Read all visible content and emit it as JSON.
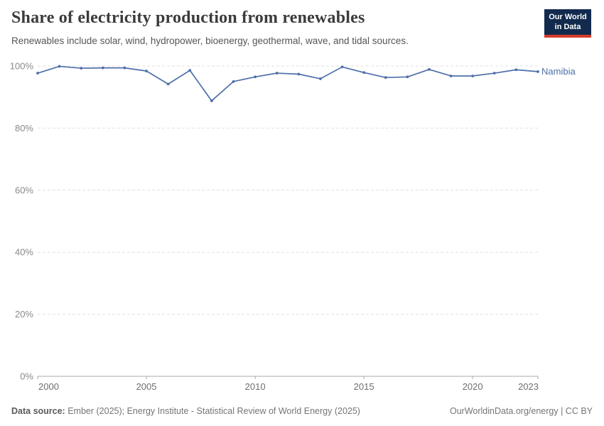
{
  "header": {
    "title": "Share of electricity production from renewables",
    "subtitle": "Renewables include solar, wind, hydropower, bioenergy, geothermal, wave, and tidal sources.",
    "logo": {
      "line1": "Our World",
      "line2": "in Data"
    }
  },
  "footer": {
    "datasource_label": "Data source:",
    "datasource_value": " Ember (2025); Energy Institute - Statistical Review of World Energy (2025)",
    "link": "OurWorldinData.org/energy | CC BY"
  },
  "colors": {
    "series_blue": "#4d6fa9",
    "logo_bg": "#122a4e",
    "logo_accent": "#d93a2b",
    "gridline": "#e0e0e0",
    "axis": "#a9a9a9"
  },
  "chart_data": {
    "type": "line",
    "title": "Share of electricity production from renewables",
    "entity_label": "Namibia",
    "xlabel": "",
    "ylabel": "",
    "xlim": [
      2000,
      2023
    ],
    "ylim": [
      0,
      100
    ],
    "x_ticks": [
      2000,
      2005,
      2010,
      2015,
      2020,
      2023
    ],
    "y_ticks": [
      0,
      20,
      40,
      60,
      80,
      100
    ],
    "y_suffix": "%",
    "grid": "horizontal-dashed",
    "legend_position": "line-end-label",
    "series": [
      {
        "name": "Namibia",
        "color": "#4d6fa9",
        "x": [
          2000,
          2001,
          2002,
          2003,
          2004,
          2005,
          2006,
          2007,
          2008,
          2009,
          2010,
          2011,
          2012,
          2013,
          2014,
          2015,
          2016,
          2017,
          2018,
          2019,
          2020,
          2021,
          2022,
          2023
        ],
        "values": [
          97.7,
          99.9,
          99.3,
          99.4,
          99.4,
          98.4,
          94.2,
          98.6,
          88.8,
          95.0,
          96.5,
          97.7,
          97.4,
          95.9,
          99.7,
          97.9,
          96.3,
          96.5,
          98.9,
          96.8,
          96.8,
          97.7,
          98.8,
          98.2
        ]
      }
    ]
  }
}
